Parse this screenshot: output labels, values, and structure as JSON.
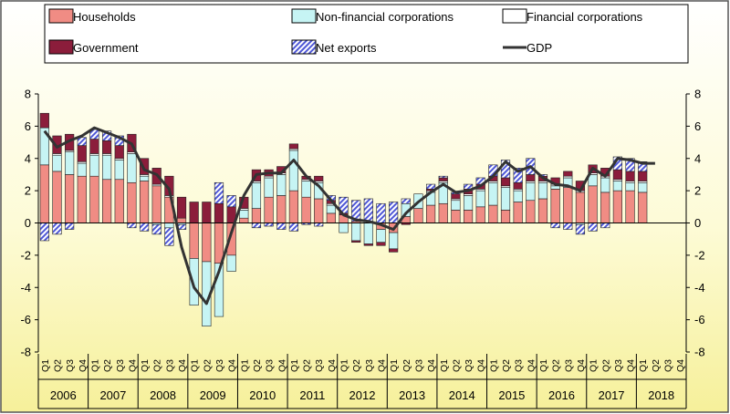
{
  "chart_data": {
    "type": "bar",
    "subtype": "stacked-bar-with-line",
    "title": "",
    "xlabel": "",
    "ylabel": "",
    "ylim": [
      -8,
      8
    ],
    "yticks": [
      -8,
      -6,
      -4,
      -2,
      0,
      2,
      4,
      6,
      8
    ],
    "secondary_y_axis": true,
    "grid": false,
    "legend_position": "top",
    "quarters": [
      "Q1",
      "Q2",
      "Q3",
      "Q4"
    ],
    "years": [
      "2006",
      "2007",
      "2008",
      "2009",
      "2010",
      "2011",
      "2012",
      "2013",
      "2014",
      "2015",
      "2016",
      "2017",
      "2018"
    ],
    "series": [
      {
        "name": "Households",
        "kind": "bar",
        "color": "#f08c84",
        "values": [
          3.6,
          3.2,
          3.0,
          2.9,
          2.9,
          2.7,
          2.7,
          2.5,
          2.6,
          2.3,
          1.6,
          0.3,
          -2.2,
          -2.4,
          -2.5,
          -2.0,
          0.3,
          0.9,
          1.6,
          1.7,
          2.0,
          1.6,
          1.5,
          0.6,
          0.5,
          0.1,
          0.0,
          -0.4,
          -0.6,
          0.4,
          0.9,
          1.1,
          1.2,
          0.8,
          0.8,
          1.0,
          1.1,
          0.8,
          1.3,
          1.4,
          1.5,
          2.1,
          2.2,
          1.9,
          2.3,
          1.9,
          2.0,
          2.0,
          1.9,
          null,
          null,
          null
        ]
      },
      {
        "name": "Non-financial corporations",
        "kind": "bar",
        "color": "#c6f4f4",
        "values": [
          2.3,
          1.0,
          1.4,
          0.8,
          1.3,
          1.5,
          1.2,
          1.8,
          0.3,
          -0.1,
          -0.3,
          -0.1,
          -2.9,
          -4.0,
          -3.3,
          -1.0,
          0.5,
          1.6,
          1.2,
          1.3,
          2.5,
          1.0,
          1.0,
          0.5,
          -0.6,
          -1.1,
          -1.3,
          -0.8,
          -1.0,
          0.8,
          0.9,
          0.8,
          1.3,
          0.6,
          0.9,
          1.0,
          1.4,
          1.4,
          0.7,
          1.1,
          1.0,
          0.2,
          0.6,
          -0.1,
          0.7,
          0.9,
          0.6,
          0.5,
          0.6,
          null,
          null,
          null
        ]
      },
      {
        "name": "Financial corporations",
        "kind": "bar",
        "color": "#ffffff",
        "values": [
          0.0,
          0.1,
          0.1,
          0.1,
          0.1,
          0.1,
          0.1,
          0.1,
          0.1,
          0.1,
          0.1,
          0.0,
          0.0,
          0.0,
          0.0,
          0.0,
          0.1,
          0.1,
          0.1,
          0.1,
          0.1,
          0.1,
          0.1,
          0.1,
          0.0,
          0.0,
          0.0,
          0.0,
          0.0,
          0.0,
          0.0,
          0.1,
          0.1,
          0.1,
          0.1,
          0.1,
          0.1,
          0.1,
          0.1,
          0.1,
          0.1,
          0.1,
          0.1,
          0.1,
          0.1,
          0.1,
          0.1,
          0.1,
          0.1,
          null,
          null,
          null
        ]
      },
      {
        "name": "Government",
        "kind": "bar",
        "color": "#8b1d3b",
        "values": [
          0.9,
          1.1,
          1.0,
          1.0,
          0.9,
          0.8,
          0.8,
          1.1,
          1.0,
          1.0,
          1.2,
          1.3,
          1.3,
          1.3,
          1.2,
          1.0,
          0.7,
          0.7,
          0.4,
          0.4,
          0.3,
          0.2,
          0.3,
          0.2,
          0.1,
          -0.1,
          -0.1,
          -0.2,
          -0.2,
          -0.1,
          0.0,
          0.1,
          0.2,
          0.3,
          0.3,
          0.3,
          0.3,
          0.5,
          0.4,
          0.4,
          0.3,
          0.4,
          0.3,
          0.6,
          0.5,
          0.5,
          0.6,
          0.6,
          0.6,
          null,
          null,
          null
        ]
      },
      {
        "name": "Net exports",
        "kind": "bar",
        "color": "#4f58d6",
        "values": [
          -1.1,
          -0.7,
          -0.4,
          0.5,
          0.6,
          0.6,
          0.6,
          -0.3,
          -0.5,
          -0.6,
          -1.1,
          -0.3,
          0.0,
          0.0,
          1.3,
          0.7,
          0.0,
          -0.3,
          -0.2,
          -0.4,
          -0.5,
          -0.1,
          -0.2,
          0.3,
          1.0,
          1.3,
          1.5,
          1.2,
          1.3,
          0.3,
          0.0,
          0.3,
          0.1,
          0.1,
          0.3,
          0.4,
          0.7,
          1.1,
          0.9,
          1.0,
          0.1,
          -0.3,
          -0.4,
          -0.6,
          -0.5,
          -0.3,
          0.8,
          0.8,
          0.6,
          null,
          null,
          null
        ]
      },
      {
        "name": "GDP",
        "kind": "line",
        "color": "#333333",
        "values": [
          5.7,
          4.7,
          5.1,
          5.4,
          5.9,
          5.6,
          5.3,
          4.9,
          3.3,
          3.0,
          2.1,
          -1.5,
          -4.0,
          -5.0,
          -3.0,
          -0.6,
          1.7,
          3.0,
          3.1,
          3.1,
          3.9,
          2.9,
          2.3,
          1.4,
          0.5,
          0.2,
          0.1,
          -0.1,
          -0.4,
          0.6,
          1.3,
          1.9,
          2.4,
          1.9,
          2.0,
          2.3,
          2.9,
          3.8,
          3.2,
          3.5,
          2.8,
          2.4,
          2.3,
          2.0,
          3.4,
          2.9,
          4.0,
          3.9,
          3.7,
          3.7,
          null,
          null
        ]
      }
    ]
  }
}
